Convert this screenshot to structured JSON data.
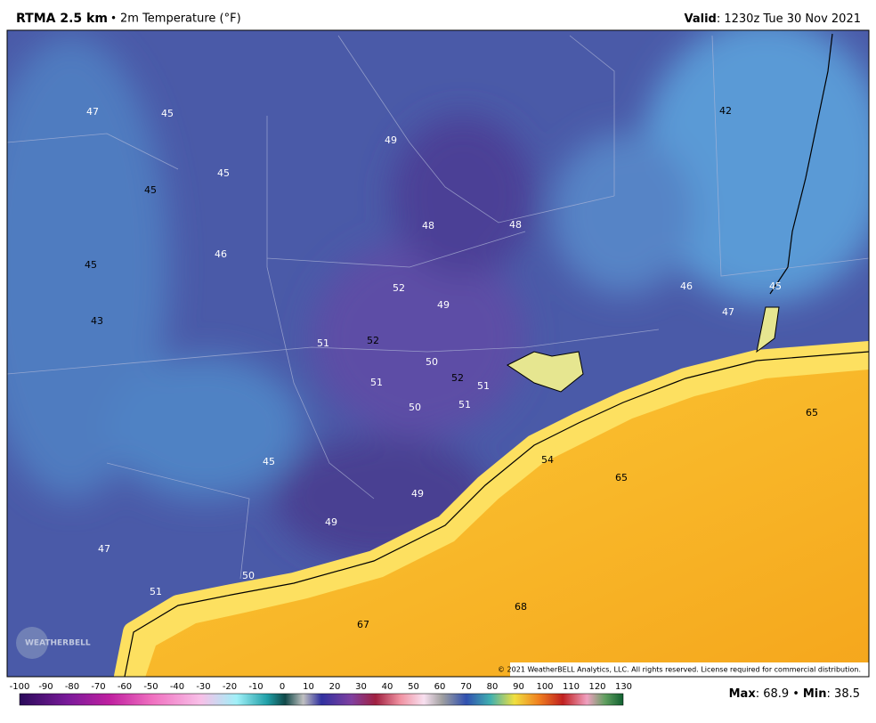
{
  "header": {
    "model": "RTMA 2.5 km",
    "separator": "•",
    "field": "2m Temperature (°F)",
    "valid_label": "Valid",
    "valid_time": ": 1230z Tue 30 Nov 2021"
  },
  "map": {
    "labels": [
      47,
      45,
      49,
      42,
      45,
      45,
      48,
      48,
      45,
      46,
      52,
      49,
      46,
      45,
      47,
      43,
      51,
      52,
      50,
      52,
      51,
      51,
      50,
      51,
      65,
      54,
      65,
      45,
      49,
      49,
      47,
      50,
      51,
      68,
      67
    ],
    "copyright": "© 2021 WeatherBELL Analytics, LLC. All rights reserved. License required for commercial distribution.",
    "logo": "WEATHERBELL"
  },
  "colorbar": {
    "ticks": [
      -100,
      -90,
      -80,
      -70,
      -60,
      -50,
      -40,
      -30,
      -20,
      -10,
      0,
      10,
      20,
      30,
      40,
      50,
      60,
      70,
      80,
      90,
      100,
      110,
      120,
      130
    ]
  },
  "stats": {
    "max_label": "Max",
    "max": 68.9,
    "separator": "•",
    "min_label": "Min",
    "min": 38.5
  }
}
